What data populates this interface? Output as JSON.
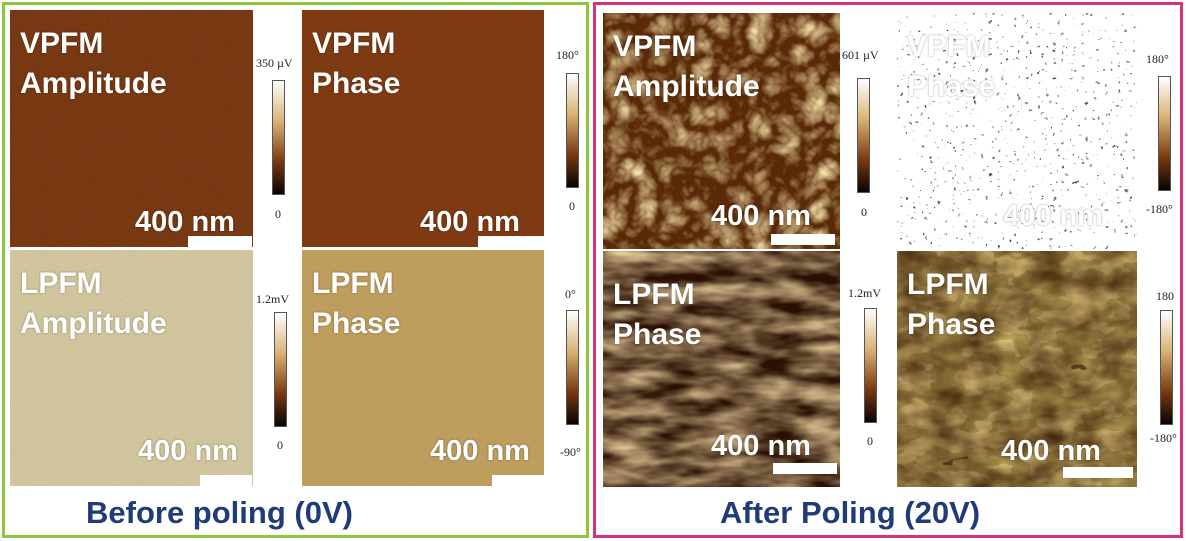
{
  "before": {
    "caption": "Before poling (0V)",
    "panels": [
      {
        "label": "VPFM\nAmplitude",
        "scale": "400 nm",
        "cbar_max": "350 µV",
        "cbar_min": "0"
      },
      {
        "label": "VPFM\nPhase",
        "scale": "400 nm",
        "cbar_max": "180°",
        "cbar_min": "0"
      },
      {
        "label": "LPFM\nAmplitude",
        "scale": "400 nm",
        "cbar_max": "1.2mV",
        "cbar_min": "0"
      },
      {
        "label": "LPFM\nPhase",
        "scale": "400 nm",
        "cbar_max": "0°",
        "cbar_min": "-90°"
      }
    ]
  },
  "after": {
    "caption": "After Poling (20V)",
    "panels": [
      {
        "label": "VPFM\nAmplitude",
        "scale": "400 nm",
        "cbar_max": "601 µV",
        "cbar_min": "0"
      },
      {
        "label": "VPFM\nPhase",
        "scale": "400 nm",
        "cbar_max": "180°",
        "cbar_min": "-180°"
      },
      {
        "label": "LPFM\nPhase",
        "scale": "400 nm",
        "cbar_max": "1.2mV",
        "cbar_min": "0"
      },
      {
        "label": "LPFM\nPhase",
        "scale": "400 nm",
        "cbar_max": "180",
        "cbar_min": "-180°"
      }
    ]
  },
  "colors": {
    "before_border": "#8cc63f",
    "after_border": "#d6327a",
    "caption": "#1f3b78"
  }
}
